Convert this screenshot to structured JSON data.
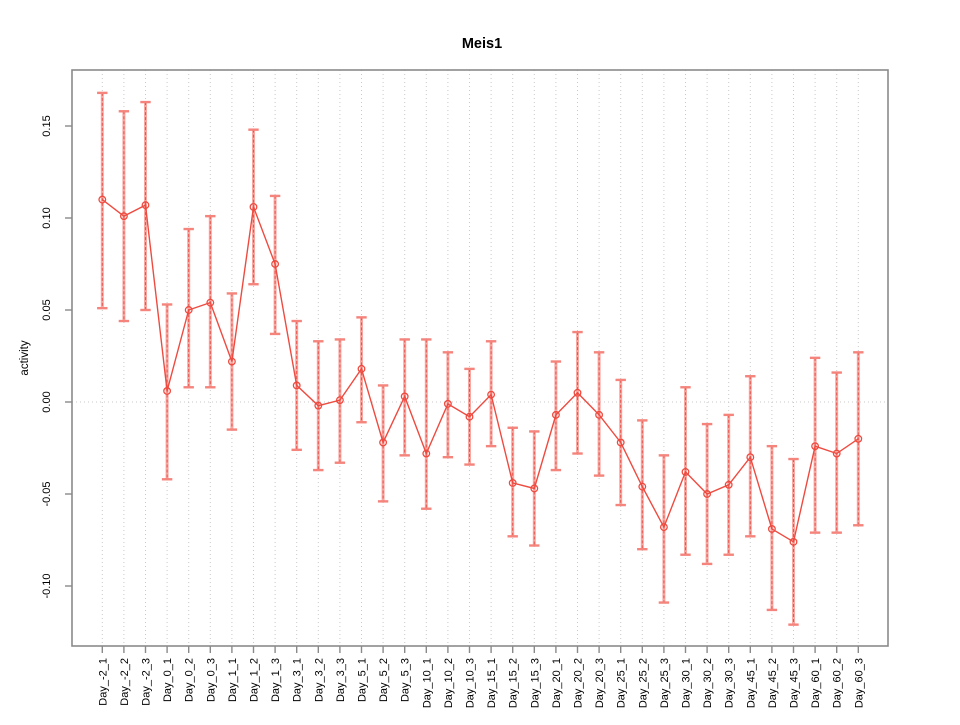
{
  "chart_data": {
    "type": "line",
    "title": "Meis1",
    "xlabel": "",
    "ylabel": "activity",
    "ylim": [
      -0.132,
      0.18
    ],
    "grid": "vertical dotted line at every category; horizontal dotted line at y=0",
    "legend": "none",
    "marker": "open-circle",
    "error_bars": true,
    "ytick_labels": [
      "0.15",
      "0.10",
      "0.05",
      "0.00",
      "-0.05",
      "-0.10"
    ],
    "yticks": [
      0.15,
      0.1,
      0.05,
      0.0,
      -0.05,
      -0.1
    ],
    "categories": [
      "Day_-2_1",
      "Day_-2_2",
      "Day_-2_3",
      "Day_0_1",
      "Day_0_2",
      "Day_0_3",
      "Day_1_1",
      "Day_1_2",
      "Day_1_3",
      "Day_3_1",
      "Day_3_2",
      "Day_3_3",
      "Day_5_1",
      "Day_5_2",
      "Day_5_3",
      "Day_10_1",
      "Day_10_2",
      "Day_10_3",
      "Day_15_1",
      "Day_15_2",
      "Day_15_3",
      "Day_20_1",
      "Day_20_2",
      "Day_20_3",
      "Day_25_1",
      "Day_25_2",
      "Day_25_3",
      "Day_30_1",
      "Day_30_2",
      "Day_30_3",
      "Day_45_1",
      "Day_45_2",
      "Day_45_3",
      "Day_60_1",
      "Day_60_2",
      "Day_60_3"
    ],
    "series": [
      {
        "name": "activity",
        "values": [
          0.11,
          0.101,
          0.107,
          0.006,
          0.05,
          0.054,
          0.022,
          0.106,
          0.075,
          0.009,
          -0.002,
          0.001,
          0.018,
          -0.022,
          0.003,
          -0.028,
          -0.001,
          -0.008,
          0.004,
          -0.044,
          -0.047,
          -0.007,
          0.005,
          -0.007,
          -0.022,
          -0.046,
          -0.068,
          -0.038,
          -0.05,
          -0.045,
          -0.03,
          -0.069,
          -0.076,
          -0.024,
          -0.028,
          -0.02
        ],
        "err_high": [
          0.168,
          0.158,
          0.163,
          0.053,
          0.094,
          0.101,
          0.059,
          0.148,
          0.112,
          0.044,
          0.033,
          0.034,
          0.046,
          0.009,
          0.034,
          0.034,
          0.027,
          0.018,
          0.033,
          -0.014,
          -0.016,
          0.022,
          0.038,
          0.027,
          0.012,
          -0.01,
          -0.029,
          0.008,
          -0.012,
          -0.007,
          0.014,
          -0.024,
          -0.031,
          0.024,
          0.016,
          0.027
        ],
        "err_low": [
          0.051,
          0.044,
          0.05,
          -0.042,
          0.008,
          0.008,
          -0.015,
          0.064,
          0.037,
          -0.026,
          -0.037,
          -0.033,
          -0.011,
          -0.054,
          -0.029,
          -0.058,
          -0.03,
          -0.034,
          -0.024,
          -0.073,
          -0.078,
          -0.037,
          -0.028,
          -0.04,
          -0.056,
          -0.08,
          -0.109,
          -0.083,
          -0.088,
          -0.083,
          -0.073,
          -0.113,
          -0.121,
          -0.071,
          -0.071,
          -0.067
        ]
      }
    ],
    "colors": {
      "series": "#ee4b40",
      "error_bar": "#f9a7a1",
      "error_cap": "#f4847c",
      "error_dash": "#e8534b",
      "grid": "#c9c9c9",
      "axis": "#8a8a8a",
      "text": "#000000",
      "background": "#ffffff"
    }
  }
}
